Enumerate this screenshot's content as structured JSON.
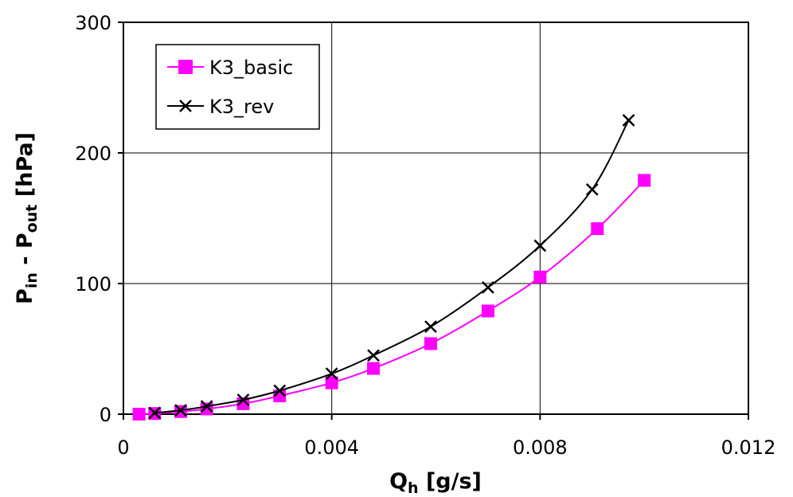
{
  "chart_data": {
    "type": "line",
    "title": "",
    "xlabel": {
      "main": "Q",
      "sub": "h",
      "rest": " [g/s]"
    },
    "ylabel": {
      "p1": "P",
      "s1": "in",
      "mid": " - P",
      "s2": "out",
      "rest": " [hPa]"
    },
    "xlim": [
      0,
      0.012
    ],
    "ylim": [
      0,
      300
    ],
    "x_ticks": [
      0,
      0.004,
      0.008,
      0.012
    ],
    "x_tick_labels": [
      "0",
      "0.004",
      "0.008",
      "0.012"
    ],
    "y_ticks": [
      0,
      100,
      200,
      300
    ],
    "y_tick_labels": [
      "0",
      "100",
      "200",
      "300"
    ],
    "grid": true,
    "legend_position": "top-left",
    "series": [
      {
        "name": "K3_basic",
        "color": "#ff00ff",
        "marker": "square",
        "x": [
          0.0003,
          0.0006,
          0.0011,
          0.0016,
          0.0023,
          0.003,
          0.004,
          0.0048,
          0.0059,
          0.007,
          0.008,
          0.0091,
          0.01
        ],
        "y": [
          0,
          0.5,
          2,
          4,
          8,
          14,
          24,
          35,
          54,
          79,
          105,
          142,
          179
        ]
      },
      {
        "name": "K3_rev",
        "color": "#000000",
        "marker": "x",
        "x": [
          0.0006,
          0.0011,
          0.0016,
          0.0023,
          0.003,
          0.004,
          0.0048,
          0.0059,
          0.007,
          0.008,
          0.009,
          0.0097
        ],
        "y": [
          1,
          3,
          6,
          11,
          18,
          31,
          45,
          67,
          97,
          129,
          172,
          225
        ]
      }
    ]
  }
}
